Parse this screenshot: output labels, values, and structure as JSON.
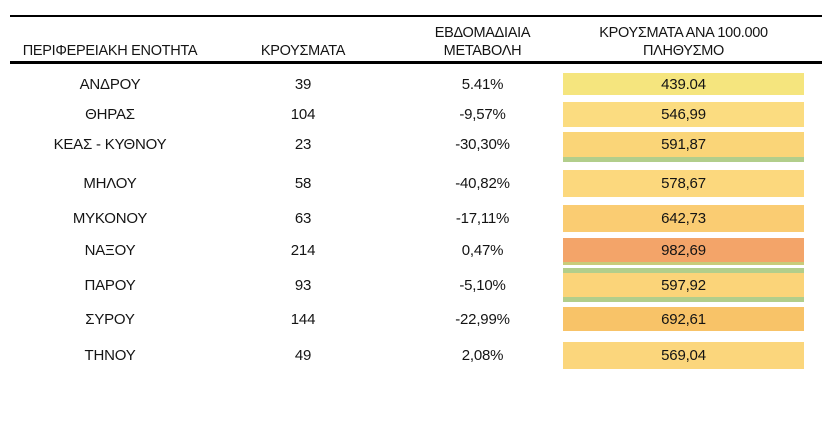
{
  "chart_data": {
    "type": "table",
    "title": "",
    "columns": [
      "ΠΕΡΙΦΕΡΕΙΑΚΗ ΕΝΟΤΗΤΑ",
      "ΚΡΟΥΣΜΑΤΑ",
      "ΕΒΔΟΜΑΔΙΑΙΑ ΜΕΤΑΒΟΛΗ",
      "ΚΡΟΥΣΜΑΤΑ ΑΝΑ 100.000 ΠΛΗΘΥΣΜΟ"
    ],
    "header_display": [
      {
        "line1": "ΠΕΡΙΦΕΡΕΙΑΚΗ ΕΝΟΤΗΤΑ",
        "line2": ""
      },
      {
        "line1": "ΚΡΟΥΣΜΑΤΑ",
        "line2": ""
      },
      {
        "line1": "ΕΒΔΟΜΑΔΙΑΙΑ",
        "line2": "ΜΕΤΑΒΟΛΗ"
      },
      {
        "line1": "ΚΡΟΥΣΜΑΤΑ ΑΝΑ 100.000",
        "line2": "ΠΛΗΘΥΣΜΟ"
      }
    ],
    "rows": [
      {
        "region": "ΑΝΔΡΟΥ",
        "cases": "39",
        "weekly_change": "5.41%",
        "per_100k": "439.04",
        "cell_color": "#F5E57E",
        "strip_above": false,
        "strip_below": false,
        "olive_below": false
      },
      {
        "region": "ΘΗΡΑΣ",
        "cases": "104",
        "weekly_change": "-9,57%",
        "per_100k": "546,99",
        "cell_color": "#FBDC80",
        "strip_above": false,
        "strip_below": false,
        "olive_below": false
      },
      {
        "region": "ΚΕΑΣ - ΚΥΘΝΟΥ",
        "cases": "23",
        "weekly_change": "-30,30%",
        "per_100k": "591,87",
        "cell_color": "#FAD578",
        "strip_above": false,
        "strip_below": true,
        "olive_below": false
      },
      {
        "region": "ΜΗΛΟΥ",
        "cases": "58",
        "weekly_change": "-40,82%",
        "per_100k": "578,67",
        "cell_color": "#FCD87D",
        "strip_above": false,
        "strip_below": false,
        "olive_below": false
      },
      {
        "region": "ΜΥΚΟΝΟΥ",
        "cases": "63",
        "weekly_change": "-17,11%",
        "per_100k": "642,73",
        "cell_color": "#FACC72",
        "strip_above": false,
        "strip_below": false,
        "olive_below": false
      },
      {
        "region": "ΝΑΞΟΥ",
        "cases": "214",
        "weekly_change": "0,47%",
        "per_100k": "982,69",
        "cell_color": "#F3A469",
        "strip_above": false,
        "strip_below": false,
        "olive_below": true
      },
      {
        "region": "ΠΑΡΟΥ",
        "cases": "93",
        "weekly_change": "-5,10%",
        "per_100k": "597,92",
        "cell_color": "#FBD479",
        "strip_above": true,
        "strip_below": true,
        "olive_below": false
      },
      {
        "region": "ΣΥΡΟΥ",
        "cases": "144",
        "weekly_change": "-22,99%",
        "per_100k": "692,61",
        "cell_color": "#F8C368",
        "strip_above": false,
        "strip_below": false,
        "olive_below": false
      },
      {
        "region": "ΤΗΝΟΥ",
        "cases": "49",
        "weekly_change": "2,08%",
        "per_100k": "569,04",
        "cell_color": "#FBD67C",
        "strip_above": false,
        "strip_below": false,
        "olive_below": false
      }
    ],
    "colors": {
      "strip_green": "#B2CE8B",
      "strip_olive": "#C9CC7A",
      "border": "#000000",
      "text": "#141414"
    },
    "layout_hints": {
      "grid": false,
      "legend": false
    }
  }
}
